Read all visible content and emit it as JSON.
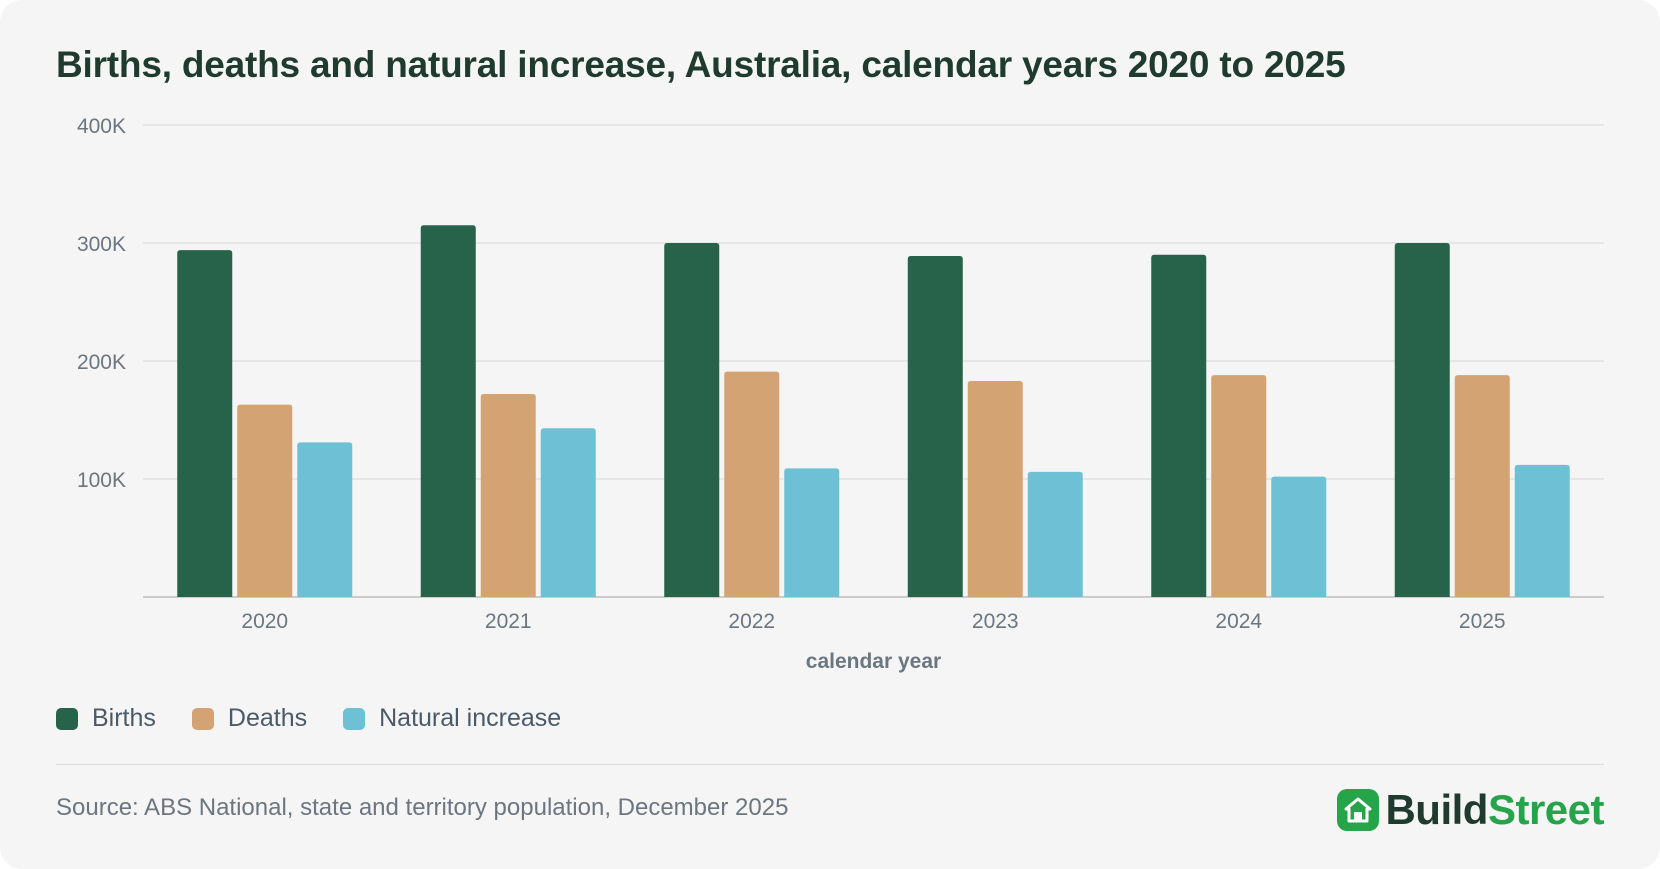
{
  "chart_data": {
    "type": "bar",
    "title": "Births, deaths and natural increase, Australia, calendar years 2020 to 2025",
    "xlabel": "calendar year",
    "ylabel": "",
    "ylim": [
      0,
      400000
    ],
    "yticks": [
      100000,
      200000,
      300000,
      400000
    ],
    "ytick_labels": [
      "100K",
      "200K",
      "300K",
      "400K"
    ],
    "categories": [
      "2020",
      "2021",
      "2022",
      "2023",
      "2024",
      "2025"
    ],
    "series": [
      {
        "name": "Births",
        "color": "#27634b",
        "values": [
          294000,
          315000,
          300000,
          289000,
          290000,
          300000
        ]
      },
      {
        "name": "Deaths",
        "color": "#d4a373",
        "values": [
          163000,
          172000,
          191000,
          183000,
          188000,
          188000
        ]
      },
      {
        "name": "Natural increase",
        "color": "#6ec1d4",
        "values": [
          131000,
          143000,
          109000,
          106000,
          102000,
          112000
        ]
      }
    ],
    "grid": true,
    "legend_position": "bottom-left"
  },
  "source": "Source: ABS National, state and territory population, December 2025",
  "brand": {
    "part1": "Build",
    "part2": "Street",
    "icon": "house-icon"
  }
}
